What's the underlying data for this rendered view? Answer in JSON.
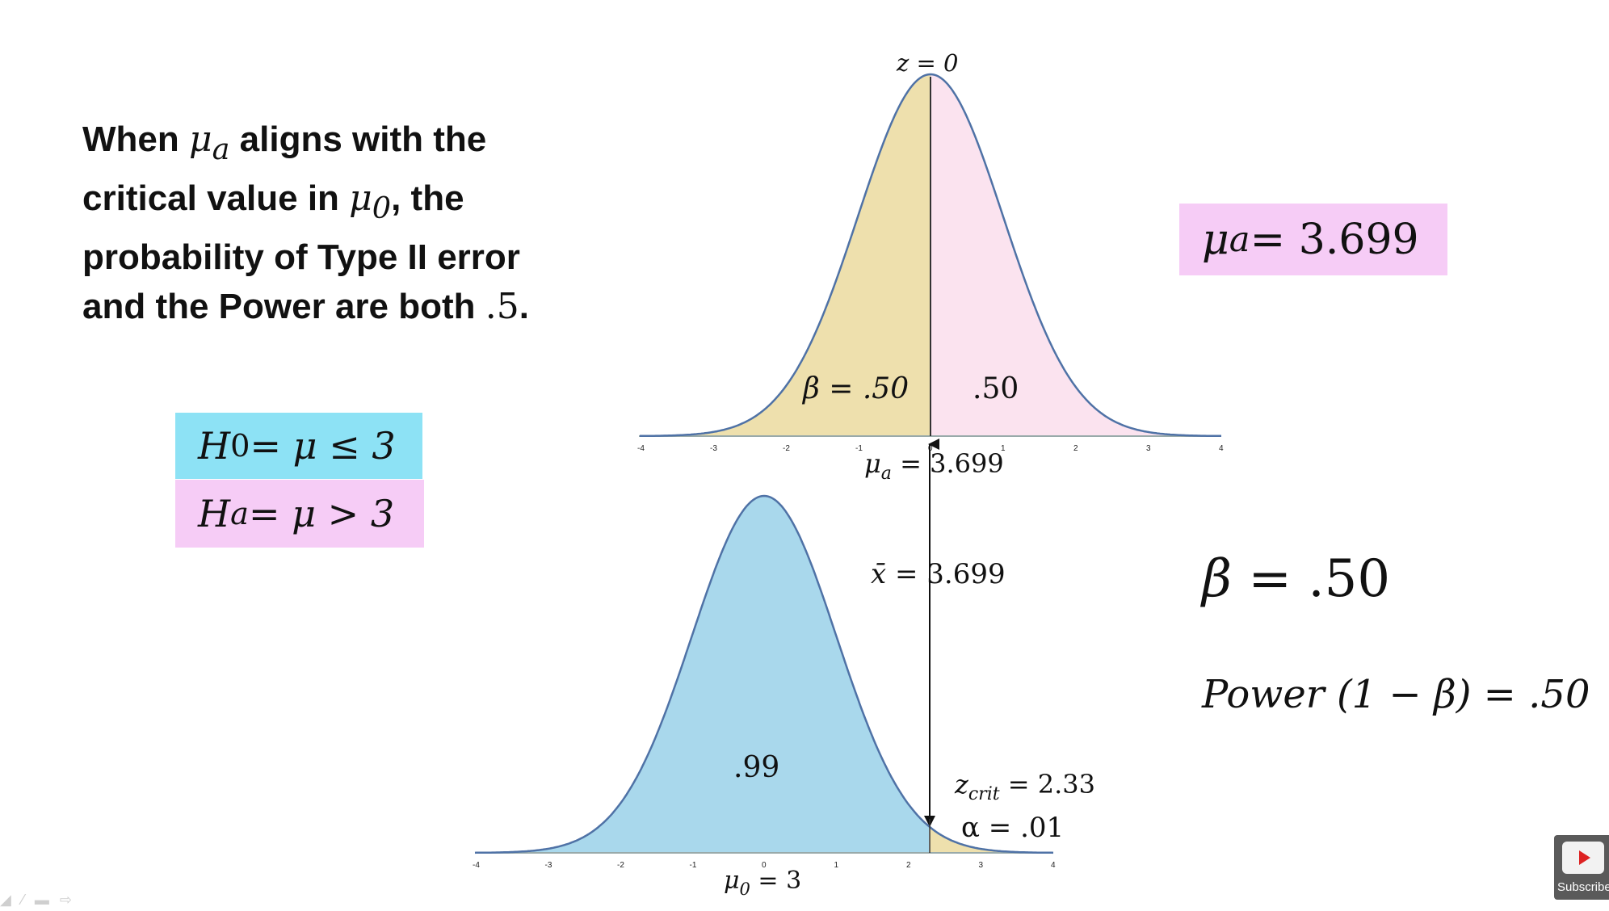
{
  "heading": {
    "w1": "When ",
    "mu_a": "μ",
    "mu_a_sub": "a",
    "w2": " aligns with the",
    "w3": "critical value in ",
    "mu_0": "μ",
    "mu_0_sub": "0",
    "w4": ", the",
    "w5": "probability of Type II error",
    "w6": "and the Power are both ",
    "w7": ".5",
    "w8": "."
  },
  "hypotheses": {
    "h0_var": "H",
    "h0_sub": "0",
    "h0_rest": " = μ ≤ 3",
    "ha_var": "H",
    "ha_sub": "a",
    "ha_rest": " = μ > 3"
  },
  "mu_alt_box": {
    "var": "μ",
    "sub": "a",
    "value": " = 3.699"
  },
  "beta_display": {
    "var": "β",
    "value": " = .50"
  },
  "power_display": {
    "text": "Power (1 − β) = .50"
  },
  "top_curve": {
    "z_label": "z = 0",
    "beta_label": "β = .50",
    "power_label": ".50",
    "axis_var": "μ",
    "axis_sub": "a",
    "axis_value": " = 3.699",
    "ticks": [
      "-4",
      "-3",
      "-2",
      "-1",
      "0",
      "1",
      "2",
      "3",
      "4"
    ]
  },
  "bottom_curve": {
    "xbar_var": "x̄",
    "xbar_value": " = 3.699",
    "area_label": ".99",
    "zcrit_var": "z",
    "zcrit_sub": "crit",
    "zcrit_value": " = 2.33",
    "alpha_label": "α = .01",
    "axis_var": "μ",
    "axis_sub": "0",
    "axis_value": " = 3",
    "ticks": [
      "-4",
      "-3",
      "-2",
      "-1",
      "0",
      "1",
      "2",
      "3",
      "4"
    ]
  },
  "colors": {
    "beta_fill": "#eee0ad",
    "power_fill": "#fbe3ef",
    "null_fill": "#a9d8ec",
    "curve_stroke": "#4f72a6",
    "h0_box": "#8de2f5",
    "ha_box": "#f6ccf6"
  },
  "subscribe": {
    "label": "Subscribe"
  }
}
